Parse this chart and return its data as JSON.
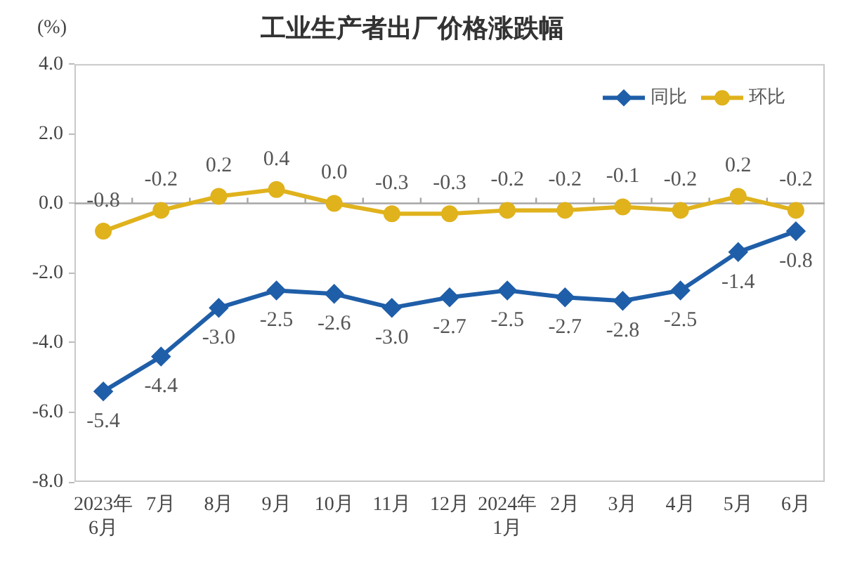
{
  "chart_data": {
    "type": "line",
    "title": "工业生产者出厂价格涨跌幅",
    "ylabel": "(%)",
    "categories": [
      "2023年\n6月",
      "7月",
      "8月",
      "9月",
      "10月",
      "11月",
      "12月",
      "2024年\n1月",
      "2月",
      "3月",
      "4月",
      "5月",
      "6月"
    ],
    "series": [
      {
        "name": "同比",
        "color": "#1f5ea8",
        "marker": "diamond",
        "values": [
          -5.4,
          -4.4,
          -3.0,
          -2.5,
          -2.6,
          -3.0,
          -2.7,
          -2.5,
          -2.7,
          -2.8,
          -2.5,
          -1.4,
          -0.8
        ],
        "value_labels": [
          "-5.4",
          "-4.4",
          "-3.0",
          "-2.5",
          "-2.6",
          "-3.0",
          "-2.7",
          "-2.5",
          "-2.7",
          "-2.8",
          "-2.5",
          "-1.4",
          "-0.8"
        ]
      },
      {
        "name": "环比",
        "color": "#e0b21c",
        "marker": "circle",
        "values": [
          -0.8,
          -0.2,
          0.2,
          0.4,
          0.0,
          -0.3,
          -0.3,
          -0.2,
          -0.2,
          -0.1,
          -0.2,
          0.2,
          -0.2
        ],
        "value_labels": [
          "-0.8",
          "-0.2",
          "0.2",
          "0.4",
          "0.0",
          "-0.3",
          "-0.3",
          "-0.2",
          "-0.2",
          "-0.1",
          "-0.2",
          "0.2",
          "-0.2"
        ]
      }
    ],
    "ylim": [
      -8,
      4
    ],
    "yticks": [
      {
        "value": 4,
        "label": "4.0"
      },
      {
        "value": 2,
        "label": "2.0"
      },
      {
        "value": 0,
        "label": "0.0"
      },
      {
        "value": -2,
        "label": "-2.0"
      },
      {
        "value": -4,
        "label": "-4.0"
      },
      {
        "value": -6,
        "label": "-6.0"
      },
      {
        "value": -8,
        "label": "-8.0"
      }
    ],
    "grid": false,
    "legend": "top right",
    "ref_lines": [
      {
        "axis": "y",
        "value": 0,
        "color": "#a6a6a6"
      }
    ]
  }
}
